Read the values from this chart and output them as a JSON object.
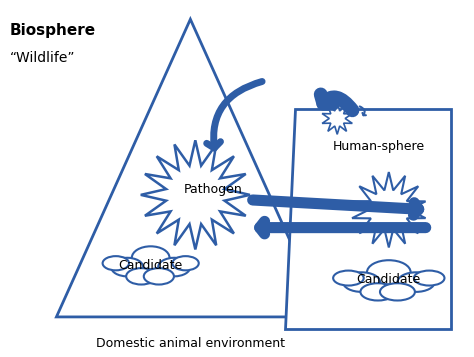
{
  "bg_color": "#ffffff",
  "outline_color": "#2E5DA6",
  "arrow_color": "#2E5DA6",
  "title1": "Biosphere",
  "title2": "“Wildlife”",
  "label_domestic": "Domestic animal environment",
  "label_human": "Human-sphere",
  "label_pathogen": "Pathogen",
  "label_candidate_left": "Candidate",
  "label_candidate_right": "Candidate",
  "figsize": [
    4.74,
    3.57
  ],
  "dpi": 100
}
